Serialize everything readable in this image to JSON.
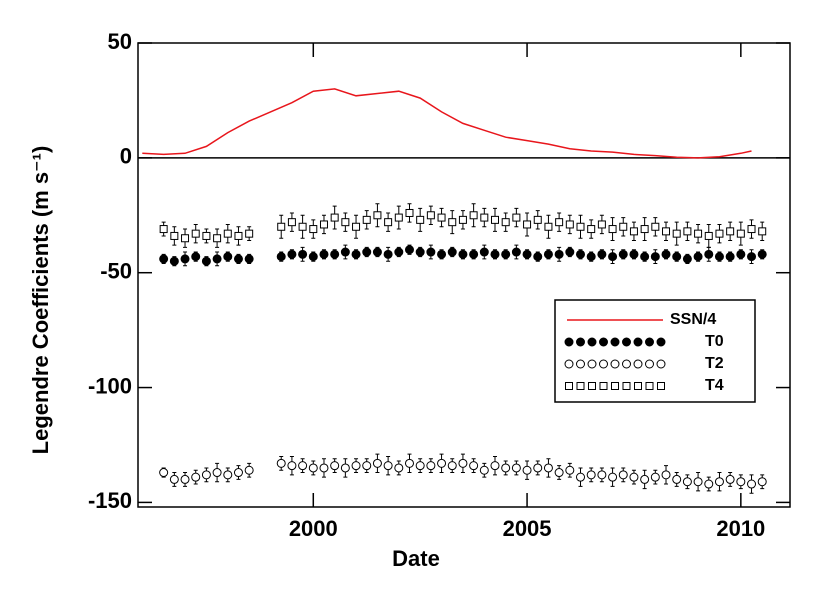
{
  "chart_data": {
    "type": "scatter",
    "xlabel": "Date",
    "ylabel": "Legendre Coefficients (m s⁻¹)",
    "xlim": [
      1995.9,
      2011.15
    ],
    "xticks": [
      2000,
      2005,
      2010
    ],
    "ylim": [
      -152,
      50
    ],
    "yticks": [
      50,
      0,
      -50,
      -100,
      -150
    ],
    "hline": 0,
    "legend": "center right",
    "series": [
      {
        "name": "SSN/4",
        "color": "#e8161c",
        "marker": "line",
        "x": [
          1996,
          1996.5,
          1997,
          1997.5,
          1998,
          1998.5,
          1999,
          1999.5,
          2000,
          2000.5,
          2001,
          2001.5,
          2002,
          2002.5,
          2003,
          2003.5,
          2004,
          2004.5,
          2005,
          2005.5,
          2006,
          2006.5,
          2007,
          2007.5,
          2008,
          2008.5,
          2009,
          2009.5,
          2010,
          2010.25
        ],
        "values": [
          2,
          1.5,
          2,
          5,
          11,
          16,
          20,
          24,
          29,
          30,
          27,
          28,
          29,
          26,
          20,
          15,
          12,
          9,
          7.5,
          6,
          4,
          3,
          2.5,
          1.5,
          1,
          0.3,
          0,
          0.5,
          2,
          3
        ]
      },
      {
        "name": "T0",
        "color": "#000000",
        "marker": "filled-circle",
        "x": [
          1996.5,
          1996.75,
          1997,
          1997.25,
          1997.5,
          1997.75,
          1998,
          1998.25,
          1998.5,
          1999.25,
          1999.5,
          1999.75,
          2000,
          2000.25,
          2000.5,
          2000.75,
          2001,
          2001.25,
          2001.5,
          2001.75,
          2002,
          2002.25,
          2002.5,
          2002.75,
          2003,
          2003.25,
          2003.5,
          2003.75,
          2004,
          2004.25,
          2004.5,
          2004.75,
          2005,
          2005.25,
          2005.5,
          2005.75,
          2006,
          2006.25,
          2006.5,
          2006.75,
          2007,
          2007.25,
          2007.5,
          2007.75,
          2008,
          2008.25,
          2008.5,
          2008.75,
          2009,
          2009.25,
          2009.5,
          2009.75,
          2010,
          2010.25,
          2010.5
        ],
        "values": [
          -44,
          -45,
          -44,
          -43,
          -45,
          -44,
          -43,
          -44,
          -44,
          -43,
          -42,
          -42,
          -43,
          -42,
          -42,
          -41,
          -42,
          -41,
          -41,
          -42,
          -41,
          -40,
          -41,
          -41,
          -42,
          -41,
          -42,
          -42,
          -41,
          -42,
          -42,
          -41,
          -42,
          -43,
          -42,
          -42,
          -41,
          -42,
          -43,
          -42,
          -43,
          -42,
          -42,
          -43,
          -43,
          -42,
          -43,
          -44,
          -43,
          -42,
          -43,
          -43,
          -42,
          -43,
          -42
        ],
        "errors": [
          2,
          2,
          3,
          2,
          2,
          3,
          2,
          2,
          2,
          2,
          2,
          3,
          2,
          2,
          2,
          3,
          2,
          2,
          2,
          3,
          2,
          2,
          2,
          3,
          2,
          2,
          2,
          2,
          3,
          2,
          2,
          3,
          2,
          2,
          2,
          3,
          2,
          2,
          2,
          2,
          3,
          2,
          2,
          2,
          3,
          2,
          2,
          2,
          2,
          3,
          2,
          2,
          2,
          3,
          2
        ]
      },
      {
        "name": "T2",
        "color": "#000000",
        "marker": "open-circle",
        "x": [
          1996.5,
          1996.75,
          1997,
          1997.25,
          1997.5,
          1997.75,
          1998,
          1998.25,
          1998.5,
          1999.25,
          1999.5,
          1999.75,
          2000,
          2000.25,
          2000.5,
          2000.75,
          2001,
          2001.25,
          2001.5,
          2001.75,
          2002,
          2002.25,
          2002.5,
          2002.75,
          2003,
          2003.25,
          2003.5,
          2003.75,
          2004,
          2004.25,
          2004.5,
          2004.75,
          2005,
          2005.25,
          2005.5,
          2005.75,
          2006,
          2006.25,
          2006.5,
          2006.75,
          2007,
          2007.25,
          2007.5,
          2007.75,
          2008,
          2008.25,
          2008.5,
          2008.75,
          2009,
          2009.25,
          2009.5,
          2009.75,
          2010,
          2010.25,
          2010.5
        ],
        "values": [
          -137,
          -140,
          -140,
          -139,
          -138,
          -137,
          -138,
          -137,
          -136,
          -133,
          -134,
          -134,
          -135,
          -135,
          -134,
          -135,
          -134,
          -134,
          -133,
          -134,
          -135,
          -133,
          -134,
          -134,
          -133,
          -134,
          -133,
          -134,
          -136,
          -134,
          -135,
          -135,
          -136,
          -135,
          -135,
          -137,
          -136,
          -139,
          -138,
          -138,
          -139,
          -138,
          -139,
          -140,
          -139,
          -138,
          -140,
          -141,
          -141,
          -142,
          -141,
          -140,
          -141,
          -142,
          -141
        ],
        "errors": [
          2,
          3,
          3,
          3,
          3,
          4,
          3,
          3,
          3,
          3,
          4,
          3,
          3,
          4,
          3,
          4,
          3,
          3,
          4,
          4,
          3,
          4,
          3,
          3,
          4,
          3,
          4,
          3,
          3,
          4,
          3,
          3,
          4,
          3,
          4,
          3,
          3,
          4,
          3,
          3,
          4,
          3,
          3,
          4,
          3,
          4,
          3,
          3,
          4,
          3,
          4,
          3,
          3,
          4,
          3
        ]
      },
      {
        "name": "T4",
        "color": "#000000",
        "marker": "open-square",
        "x": [
          1996.5,
          1996.75,
          1997,
          1997.25,
          1997.5,
          1997.75,
          1998,
          1998.25,
          1998.5,
          1999.25,
          1999.5,
          1999.75,
          2000,
          2000.25,
          2000.5,
          2000.75,
          2001,
          2001.25,
          2001.5,
          2001.75,
          2002,
          2002.25,
          2002.5,
          2002.75,
          2003,
          2003.25,
          2003.5,
          2003.75,
          2004,
          2004.25,
          2004.5,
          2004.75,
          2005,
          2005.25,
          2005.5,
          2005.75,
          2006,
          2006.25,
          2006.5,
          2006.75,
          2007,
          2007.25,
          2007.5,
          2007.75,
          2008,
          2008.25,
          2008.5,
          2008.75,
          2009,
          2009.25,
          2009.5,
          2009.75,
          2010,
          2010.25,
          2010.5
        ],
        "values": [
          -31,
          -34,
          -35,
          -33,
          -34,
          -35,
          -33,
          -34,
          -33,
          -30,
          -28,
          -30,
          -31,
          -29,
          -26,
          -28,
          -30,
          -27,
          -25,
          -28,
          -26,
          -24,
          -27,
          -25,
          -26,
          -28,
          -27,
          -25,
          -26,
          -27,
          -28,
          -26,
          -29,
          -27,
          -30,
          -28,
          -29,
          -30,
          -31,
          -29,
          -31,
          -30,
          -32,
          -31,
          -30,
          -32,
          -33,
          -32,
          -33,
          -34,
          -33,
          -32,
          -33,
          -31,
          -32
        ],
        "errors": [
          3,
          4,
          4,
          4,
          3,
          4,
          4,
          4,
          3,
          5,
          4,
          5,
          4,
          4,
          5,
          4,
          5,
          4,
          5,
          4,
          5,
          4,
          5,
          4,
          4,
          5,
          4,
          5,
          4,
          5,
          4,
          4,
          5,
          4,
          5,
          4,
          4,
          5,
          4,
          4,
          5,
          4,
          4,
          5,
          4,
          4,
          5,
          4,
          4,
          5,
          4,
          4,
          5,
          4,
          4
        ]
      }
    ]
  }
}
